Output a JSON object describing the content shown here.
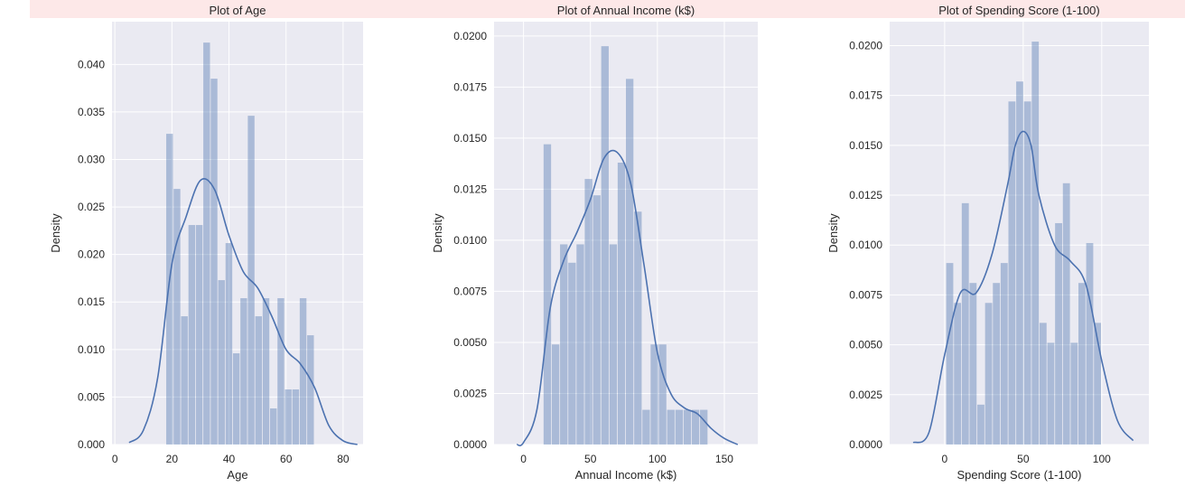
{
  "colors": {
    "axes_bg": "#eaeaf2",
    "grid": "#ffffff",
    "bar": "#4c72b0",
    "bar_opacity": 0.4,
    "kde": "#4c72b0",
    "banner": "#fde8e8"
  },
  "chart_data": [
    {
      "type": "bar",
      "title": "Plot of Age",
      "xlabel": "Age",
      "ylabel": "Density",
      "xlim": [
        -1,
        87
      ],
      "ylim": [
        0,
        0.0445
      ],
      "xticks": [
        0,
        20,
        40,
        60,
        80
      ],
      "yticks": [
        0.0,
        0.005,
        0.01,
        0.015,
        0.02,
        0.025,
        0.03,
        0.035,
        0.04
      ],
      "ytick_labels": [
        "0.000",
        "0.005",
        "0.010",
        "0.015",
        "0.020",
        "0.025",
        "0.030",
        "0.035",
        "0.040"
      ],
      "bin_edges": [
        18,
        20.6,
        23.2,
        25.8,
        28.4,
        31,
        33.6,
        36.2,
        38.8,
        41.4,
        44,
        46.6,
        49.2,
        51.8,
        54.4,
        57,
        59.6,
        62.2,
        64.8,
        67.4,
        70
      ],
      "values": [
        0.0327,
        0.0269,
        0.0135,
        0.0231,
        0.0231,
        0.0423,
        0.0385,
        0.0173,
        0.0212,
        0.0096,
        0.0154,
        0.0346,
        0.0135,
        0.0154,
        0.0038,
        0.0154,
        0.0058,
        0.0058,
        0.0154,
        0.0115
      ],
      "kde": {
        "x": [
          5,
          10,
          15,
          20,
          25,
          30,
          35,
          40,
          45,
          50,
          55,
          60,
          65,
          70,
          75,
          80,
          85
        ],
        "y": [
          0.0002,
          0.0015,
          0.007,
          0.019,
          0.024,
          0.0278,
          0.0268,
          0.022,
          0.0182,
          0.0165,
          0.0135,
          0.01,
          0.0085,
          0.006,
          0.002,
          0.0004,
          0.0
        ]
      }
    },
    {
      "type": "bar",
      "title": "Plot of Annual Income (k$)",
      "xlabel": "Annual Income (k$)",
      "ylabel": "Density",
      "xlim": [
        -22,
        175
      ],
      "ylim": [
        0,
        0.0207
      ],
      "xticks": [
        0,
        50,
        100,
        150
      ],
      "yticks": [
        0.0,
        0.0025,
        0.005,
        0.0075,
        0.01,
        0.0125,
        0.015,
        0.0175,
        0.02
      ],
      "ytick_labels": [
        "0.0000",
        "0.0025",
        "0.0050",
        "0.0075",
        "0.0100",
        "0.0125",
        "0.0150",
        "0.0175",
        "0.0200"
      ],
      "bin_edges": [
        15,
        21.15,
        27.3,
        33.45,
        39.6,
        45.75,
        51.9,
        58.05,
        64.2,
        70.35,
        76.5,
        82.65,
        88.8,
        94.95,
        101.1,
        107.25,
        113.4,
        119.55,
        125.7,
        131.85,
        138
      ],
      "values": [
        0.0147,
        0.0049,
        0.0098,
        0.0089,
        0.0098,
        0.013,
        0.0122,
        0.0195,
        0.0098,
        0.0138,
        0.0179,
        0.0114,
        0.0017,
        0.0049,
        0.0049,
        0.0017,
        0.0017,
        0.0017,
        0.0017,
        0.0017
      ],
      "kde": {
        "x": [
          -5,
          0,
          10,
          20,
          30,
          40,
          50,
          60,
          70,
          80,
          90,
          100,
          110,
          120,
          130,
          140,
          150,
          160
        ],
        "y": [
          0.0,
          0.0001,
          0.0017,
          0.0067,
          0.009,
          0.0104,
          0.012,
          0.014,
          0.0143,
          0.0128,
          0.0088,
          0.0045,
          0.0025,
          0.0018,
          0.0015,
          0.0008,
          0.0003,
          0.0
        ]
      }
    },
    {
      "type": "bar",
      "title": "Plot of Spending Score (1-100)",
      "xlabel": "Spending Score (1-100)",
      "ylabel": "Density",
      "xlim": [
        -35,
        130
      ],
      "ylim": [
        0,
        0.0212
      ],
      "xticks": [
        0,
        50,
        100
      ],
      "yticks": [
        0.0,
        0.0025,
        0.005,
        0.0075,
        0.01,
        0.0125,
        0.015,
        0.0175,
        0.02
      ],
      "ytick_labels": [
        "0.0000",
        "0.0025",
        "0.0050",
        "0.0075",
        "0.0100",
        "0.0125",
        "0.0150",
        "0.0175",
        "0.0200"
      ],
      "bin_edges": [
        1,
        5.95,
        10.9,
        15.85,
        20.8,
        25.75,
        30.7,
        35.65,
        40.6,
        45.55,
        50.5,
        55.45,
        60.4,
        65.35,
        70.3,
        75.25,
        80.2,
        85.15,
        90.1,
        95.05,
        100
      ],
      "values": [
        0.0091,
        0.0071,
        0.0121,
        0.0081,
        0.002,
        0.0071,
        0.0081,
        0.0091,
        0.0172,
        0.0182,
        0.0172,
        0.0202,
        0.0061,
        0.0051,
        0.0111,
        0.0131,
        0.0051,
        0.0081,
        0.0101,
        0.0061
      ],
      "kde": {
        "x": [
          -20,
          -10,
          0,
          10,
          20,
          30,
          40,
          45,
          50,
          55,
          60,
          70,
          80,
          90,
          100,
          110,
          120
        ],
        "y": [
          0.0001,
          0.0006,
          0.0045,
          0.0076,
          0.0076,
          0.0095,
          0.013,
          0.015,
          0.0157,
          0.015,
          0.0125,
          0.01,
          0.0092,
          0.008,
          0.0042,
          0.0012,
          0.0002
        ]
      }
    }
  ]
}
